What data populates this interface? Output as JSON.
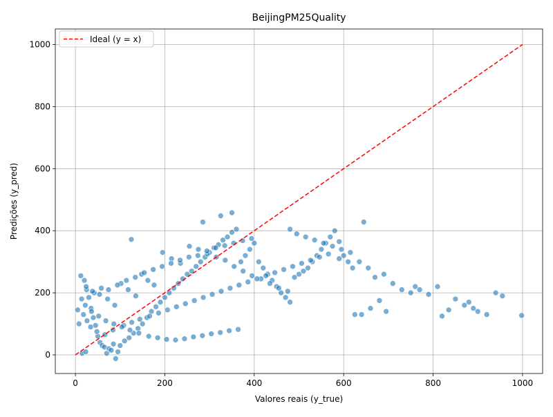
{
  "chart_data": {
    "type": "scatter",
    "title": "BeijingPM25Quality",
    "xlabel": "Valores reais (y_true)",
    "ylabel": "Predições (y_pred)",
    "xlim": [
      -45,
      1045
    ],
    "ylim": [
      -60,
      1050
    ],
    "xticks": [
      0,
      200,
      400,
      600,
      800,
      1000
    ],
    "yticks": [
      0,
      200,
      400,
      600,
      800,
      1000
    ],
    "grid": true,
    "legend_position": "top-left",
    "colors": {
      "points": "#1f77b4",
      "ideal_line": "#ff0000"
    },
    "series": [
      {
        "kind": "scatter",
        "points": [
          [
            12,
            255
          ],
          [
            20,
            240
          ],
          [
            25,
            210
          ],
          [
            30,
            185
          ],
          [
            35,
            150
          ],
          [
            40,
            120
          ],
          [
            45,
            95
          ],
          [
            50,
            60
          ],
          [
            55,
            40
          ],
          [
            60,
            30
          ],
          [
            65,
            25
          ],
          [
            70,
            5
          ],
          [
            75,
            20
          ],
          [
            80,
            15
          ],
          [
            85,
            35
          ],
          [
            90,
            -12
          ],
          [
            95,
            10
          ],
          [
            100,
            30
          ],
          [
            110,
            45
          ],
          [
            120,
            55
          ],
          [
            130,
            70
          ],
          [
            140,
            85
          ],
          [
            150,
            100
          ],
          [
            160,
            120
          ],
          [
            170,
            140
          ],
          [
            180,
            155
          ],
          [
            190,
            170
          ],
          [
            200,
            185
          ],
          [
            210,
            200
          ],
          [
            220,
            215
          ],
          [
            230,
            230
          ],
          [
            240,
            245
          ],
          [
            250,
            260
          ],
          [
            260,
            270
          ],
          [
            270,
            285
          ],
          [
            280,
            300
          ],
          [
            290,
            315
          ],
          [
            300,
            330
          ],
          [
            310,
            345
          ],
          [
            320,
            355
          ],
          [
            330,
            370
          ],
          [
            340,
            380
          ],
          [
            350,
            395
          ],
          [
            360,
            405
          ],
          [
            370,
            300
          ],
          [
            380,
            320
          ],
          [
            390,
            340
          ],
          [
            400,
            360
          ],
          [
            410,
            300
          ],
          [
            420,
            280
          ],
          [
            430,
            260
          ],
          [
            440,
            240
          ],
          [
            450,
            220
          ],
          [
            460,
            200
          ],
          [
            470,
            185
          ],
          [
            480,
            170
          ],
          [
            490,
            250
          ],
          [
            500,
            260
          ],
          [
            510,
            270
          ],
          [
            520,
            280
          ],
          [
            530,
            300
          ],
          [
            540,
            320
          ],
          [
            550,
            340
          ],
          [
            560,
            360
          ],
          [
            570,
            380
          ],
          [
            580,
            400
          ],
          [
            590,
            310
          ],
          [
            600,
            320
          ],
          [
            610,
            300
          ],
          [
            620,
            280
          ],
          [
            625,
            130
          ],
          [
            640,
            130
          ],
          [
            660,
            150
          ],
          [
            680,
            175
          ],
          [
            695,
            140
          ],
          [
            760,
            220
          ],
          [
            810,
            220
          ],
          [
            820,
            125
          ],
          [
            835,
            145
          ],
          [
            880,
            170
          ],
          [
            900,
            140
          ],
          [
            940,
            200
          ],
          [
            955,
            190
          ],
          [
            998,
            127
          ],
          [
            645,
            428
          ],
          [
            350,
            458
          ],
          [
            325,
            448
          ],
          [
            285,
            428
          ],
          [
            480,
            405
          ],
          [
            590,
            365
          ],
          [
            125,
            372
          ],
          [
            15,
            5
          ],
          [
            23,
            10
          ],
          [
            5,
            145
          ],
          [
            8,
            100
          ],
          [
            42,
            200
          ],
          [
            58,
            215
          ],
          [
            72,
            180
          ],
          [
            88,
            160
          ],
          [
            102,
            230
          ],
          [
            118,
            210
          ],
          [
            135,
            190
          ],
          [
            148,
            260
          ],
          [
            162,
            240
          ],
          [
            176,
            225
          ],
          [
            195,
            330
          ],
          [
            215,
            310
          ],
          [
            235,
            295
          ],
          [
            255,
            350
          ],
          [
            275,
            340
          ],
          [
            295,
            325
          ],
          [
            315,
            315
          ],
          [
            335,
            305
          ],
          [
            355,
            285
          ],
          [
            375,
            270
          ],
          [
            395,
            255
          ],
          [
            415,
            245
          ],
          [
            435,
            230
          ],
          [
            455,
            215
          ],
          [
            475,
            205
          ],
          [
            495,
            390
          ],
          [
            515,
            380
          ],
          [
            535,
            370
          ],
          [
            555,
            360
          ],
          [
            575,
            350
          ],
          [
            595,
            340
          ],
          [
            615,
            330
          ],
          [
            635,
            300
          ],
          [
            655,
            280
          ],
          [
            670,
            250
          ],
          [
            690,
            260
          ],
          [
            710,
            230
          ],
          [
            730,
            210
          ],
          [
            750,
            200
          ],
          [
            770,
            210
          ],
          [
            790,
            195
          ],
          [
            850,
            180
          ],
          [
            870,
            160
          ],
          [
            890,
            150
          ],
          [
            920,
            130
          ],
          [
            18,
            130
          ],
          [
            26,
            110
          ],
          [
            34,
            90
          ],
          [
            48,
            75
          ],
          [
            66,
            65
          ],
          [
            84,
            80
          ],
          [
            108,
            95
          ],
          [
            126,
            105
          ],
          [
            144,
            115
          ],
          [
            166,
            125
          ],
          [
            186,
            135
          ],
          [
            206,
            145
          ],
          [
            226,
            155
          ],
          [
            246,
            165
          ],
          [
            266,
            175
          ],
          [
            286,
            185
          ],
          [
            306,
            195
          ],
          [
            326,
            205
          ],
          [
            346,
            215
          ],
          [
            366,
            225
          ],
          [
            386,
            235
          ],
          [
            406,
            245
          ],
          [
            426,
            255
          ],
          [
            446,
            265
          ],
          [
            466,
            275
          ],
          [
            486,
            285
          ],
          [
            506,
            295
          ],
          [
            526,
            305
          ],
          [
            546,
            315
          ],
          [
            566,
            325
          ],
          [
            14,
            180
          ],
          [
            22,
            160
          ],
          [
            36,
            140
          ],
          [
            52,
            125
          ],
          [
            68,
            110
          ],
          [
            86,
            100
          ],
          [
            104,
            90
          ],
          [
            122,
            80
          ],
          [
            142,
            70
          ],
          [
            164,
            60
          ],
          [
            184,
            55
          ],
          [
            204,
            50
          ],
          [
            224,
            48
          ],
          [
            244,
            52
          ],
          [
            264,
            58
          ],
          [
            284,
            62
          ],
          [
            304,
            68
          ],
          [
            324,
            72
          ],
          [
            344,
            78
          ],
          [
            364,
            82
          ],
          [
            24,
            220
          ],
          [
            38,
            205
          ],
          [
            54,
            195
          ],
          [
            74,
            210
          ],
          [
            94,
            225
          ],
          [
            114,
            240
          ],
          [
            134,
            250
          ],
          [
            154,
            265
          ],
          [
            174,
            275
          ],
          [
            194,
            285
          ],
          [
            214,
            295
          ],
          [
            234,
            305
          ],
          [
            254,
            315
          ],
          [
            274,
            320
          ],
          [
            294,
            335
          ],
          [
            314,
            345
          ],
          [
            334,
            352
          ],
          [
            354,
            360
          ],
          [
            374,
            368
          ],
          [
            394,
            375
          ]
        ]
      },
      {
        "kind": "line",
        "name": "Ideal (y = x)",
        "x": [
          0,
          1000
        ],
        "y": [
          0,
          1000
        ]
      }
    ]
  }
}
